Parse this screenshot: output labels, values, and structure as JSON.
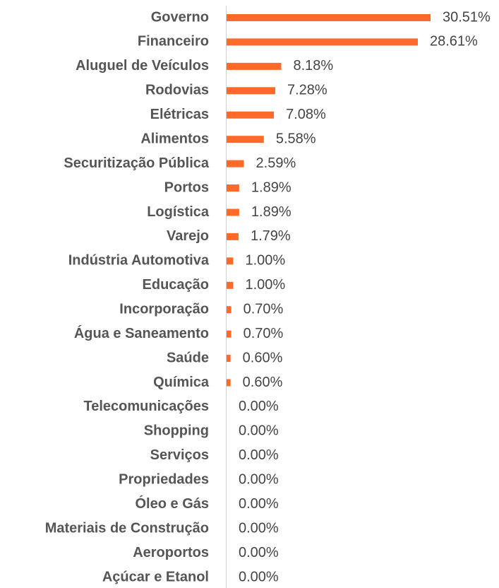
{
  "chart_data": {
    "type": "barh",
    "color": "#ff6a2b",
    "categories": [
      "Governo",
      "Financeiro",
      "Aluguel de Veículos",
      "Rodovias",
      "Elétricas",
      "Alimentos",
      "Securitização Pública",
      "Portos",
      "Logística",
      "Varejo",
      "Indústria Automotiva",
      "Educação",
      "Incorporação",
      "Água e Saneamento",
      "Saúde",
      "Química",
      "Telecomunicações",
      "Shopping",
      "Serviços",
      "Propriedades",
      "Óleo e Gás",
      "Materiais de Construção",
      "Aeroportos",
      "Açúcar e Etanol"
    ],
    "values": [
      30.51,
      28.61,
      8.18,
      7.28,
      7.08,
      5.58,
      2.59,
      1.89,
      1.89,
      1.79,
      1.0,
      1.0,
      0.7,
      0.7,
      0.6,
      0.6,
      0,
      0,
      0,
      0,
      0,
      0,
      0,
      0
    ],
    "value_labels": [
      "30.51%",
      "28.61%",
      "8.18%",
      "7.28%",
      "7.08%",
      "5.58%",
      "2.59%",
      "1.89%",
      "1.89%",
      "1.79%",
      "1.00%",
      "1.00%",
      "0.70%",
      "0.70%",
      "0.60%",
      "0.60%",
      "0.00%",
      "0.00%",
      "0.00%",
      "0.00%",
      "0.00%",
      "0.00%",
      "0.00%",
      "0.00%"
    ]
  }
}
